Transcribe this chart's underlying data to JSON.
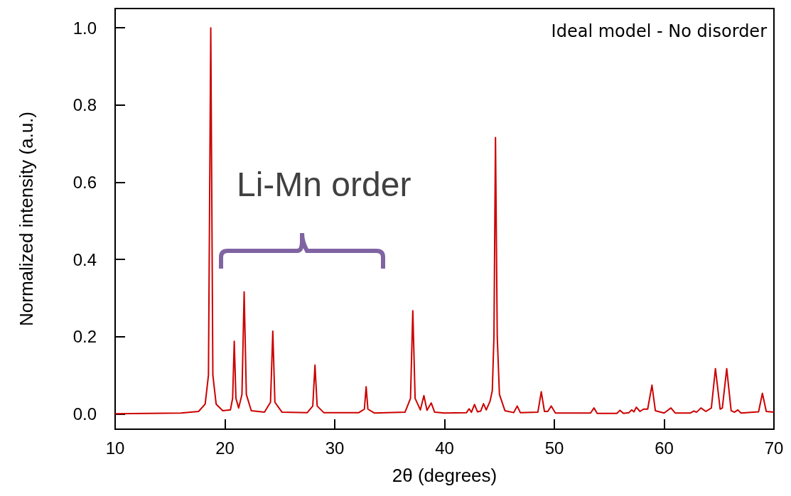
{
  "chart_data": {
    "type": "line",
    "xlabel": "2θ (degrees)",
    "ylabel": "Normalized intensity (a.u.)",
    "annotations": [
      "Ideal model - No disorder",
      "Li-Mn order"
    ],
    "xlim": [
      10,
      70
    ],
    "xticks": [
      10,
      20,
      30,
      40,
      50,
      60,
      70
    ],
    "ylim": [
      -0.04,
      1.05
    ],
    "yticks": [
      {
        "value": 0,
        "label": "0.0"
      },
      0.2,
      0.4,
      0.6,
      0.8,
      {
        "value": 1,
        "label": "1.0"
      }
    ],
    "grid": false,
    "marker": "none",
    "line_style": "solid",
    "series": [
      {
        "color": "#cc0000",
        "x": [
          10,
          16,
          17.6,
          18.2,
          18.5,
          18.71,
          18.9,
          19.2,
          19.8,
          20.5,
          20.7,
          20.85,
          21.0,
          21.25,
          21.55,
          21.75,
          21.95,
          22.4,
          23.6,
          24.15,
          24.36,
          24.55,
          25.2,
          27.5,
          28.0,
          28.2,
          28.4,
          29.0,
          32.2,
          32.7,
          32.86,
          33.02,
          33.6,
          36.4,
          36.9,
          37.11,
          37.32,
          37.8,
          38.12,
          38.4,
          38.79,
          39.1,
          40,
          42.0,
          42.24,
          42.45,
          42.73,
          43.0,
          43.3,
          43.55,
          43.8,
          44.15,
          44.35,
          44.5,
          44.64,
          44.8,
          45.0,
          45.5,
          46.3,
          46.62,
          46.9,
          48.5,
          48.81,
          49.1,
          49.4,
          49.72,
          50.1,
          53.3,
          53.61,
          53.9,
          55.7,
          55.98,
          56.3,
          56.8,
          57.04,
          57.25,
          57.47,
          57.8,
          58.12,
          58.5,
          58.89,
          59.2,
          60.0,
          60.62,
          61.0,
          62.4,
          62.71,
          62.95,
          63.35,
          63.8,
          64.3,
          64.67,
          65.1,
          65.3,
          65.7,
          66.1,
          66.4,
          66.71,
          67.0,
          68.6,
          68.95,
          69.3,
          70
        ],
        "values": [
          0,
          0.002,
          0.006,
          0.025,
          0.1,
          1.0,
          0.1,
          0.025,
          0.008,
          0.01,
          0.04,
          0.188,
          0.04,
          0.015,
          0.05,
          0.316,
          0.05,
          0.008,
          0.004,
          0.03,
          0.214,
          0.03,
          0.004,
          0.003,
          0.02,
          0.126,
          0.02,
          0.003,
          0.003,
          0.012,
          0.07,
          0.012,
          0.002,
          0.004,
          0.04,
          0.267,
          0.04,
          0.01,
          0.047,
          0.009,
          0.028,
          0.004,
          0.002,
          0.003,
          0.013,
          0.004,
          0.024,
          0.005,
          0.007,
          0.026,
          0.01,
          0.033,
          0.06,
          0.2,
          0.716,
          0.2,
          0.05,
          0.008,
          0.003,
          0.02,
          0.003,
          0.004,
          0.057,
          0.006,
          0.006,
          0.02,
          0.002,
          0.002,
          0.015,
          0.001,
          0.001,
          0.009,
          0.001,
          0.003,
          0.01,
          0.005,
          0.017,
          0.006,
          0.012,
          0.012,
          0.074,
          0.008,
          0.002,
          0.015,
          0.002,
          0.002,
          0.007,
          0.004,
          0.015,
          0.006,
          0.015,
          0.117,
          0.012,
          0.015,
          0.117,
          0.008,
          0.004,
          0.01,
          0.002,
          0.005,
          0.053,
          0.006,
          0.004
        ]
      }
    ]
  }
}
